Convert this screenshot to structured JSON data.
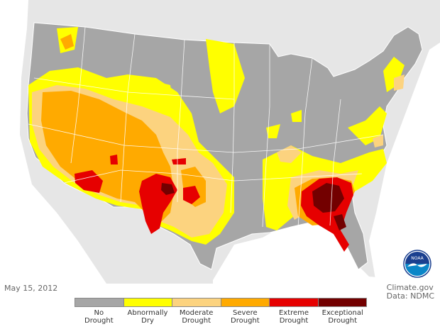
{
  "map": {
    "date": "May 15, 2012",
    "credit_line1": "Climate.gov",
    "credit_line2": "Data: NDMC",
    "logo_text": "NOAA",
    "colors": {
      "background_land": "#e6e6e6",
      "water": "#ffffff",
      "no_drought": "#a6a6a6",
      "abnormally_dry": "#ffff00",
      "moderate": "#fcd37f",
      "severe": "#ffaa00",
      "extreme": "#e60000",
      "exceptional": "#730000"
    },
    "legend": [
      {
        "line1": "No",
        "line2": "Drought",
        "color": "#a6a6a6"
      },
      {
        "line1": "Abnormally",
        "line2": "Dry",
        "color": "#ffff00"
      },
      {
        "line1": "Moderate",
        "line2": "Drought",
        "color": "#fcd37f"
      },
      {
        "line1": "Severe",
        "line2": "Drought",
        "color": "#ffaa00"
      },
      {
        "line1": "Extreme",
        "line2": "Drought",
        "color": "#e60000"
      },
      {
        "line1": "Exceptional",
        "line2": "Drought",
        "color": "#730000"
      }
    ]
  }
}
